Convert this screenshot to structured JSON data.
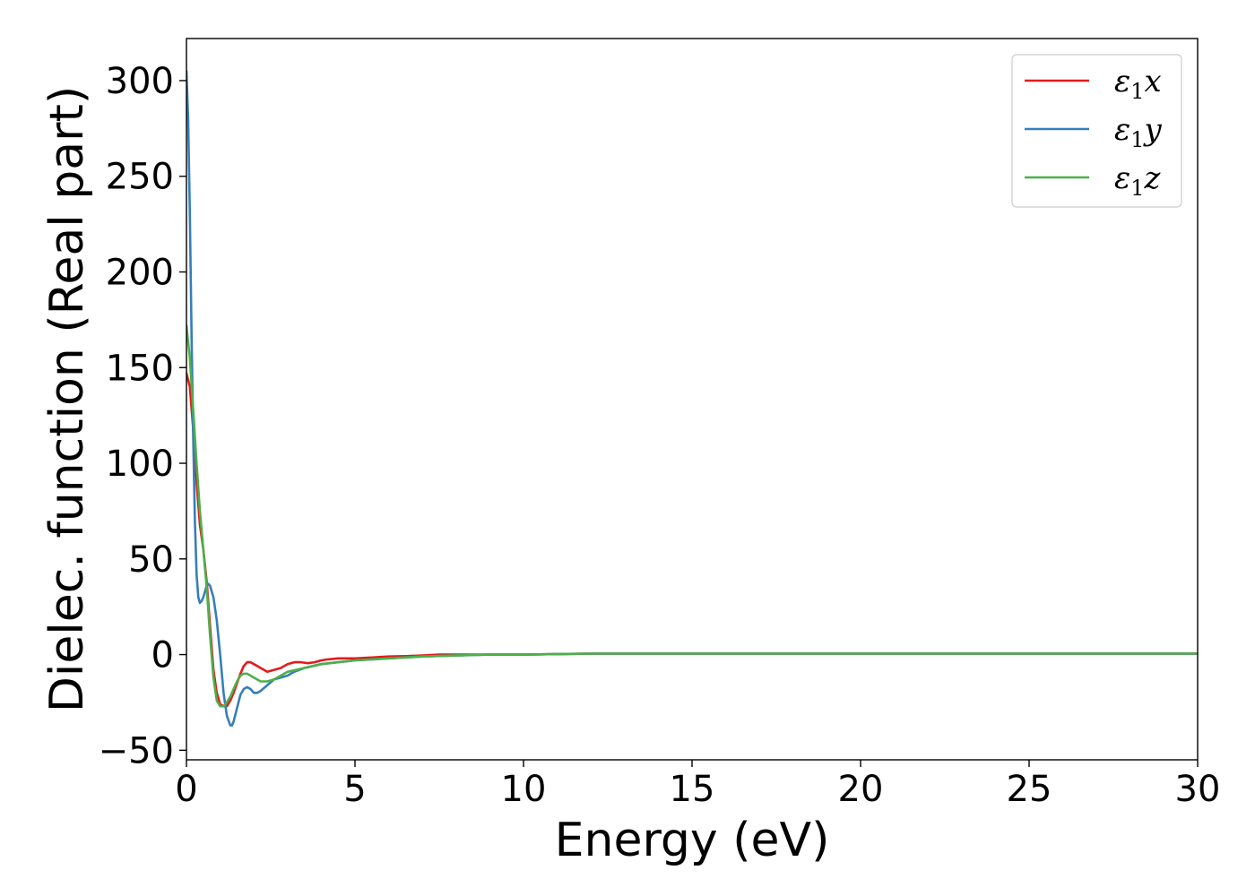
{
  "chart_data": {
    "type": "line",
    "title": "",
    "xlabel": "Energy (eV)",
    "ylabel": "Dielec. function (Real part)",
    "xlim": [
      0,
      30
    ],
    "ylim": [
      -55,
      322
    ],
    "xticks": [
      0,
      5,
      10,
      15,
      20,
      25,
      30
    ],
    "xtick_labels": [
      "0",
      "5",
      "10",
      "15",
      "20",
      "25",
      "30"
    ],
    "yticks": [
      -50,
      0,
      50,
      100,
      150,
      200,
      250,
      300
    ],
    "ytick_labels": [
      "−50",
      "0",
      "50",
      "100",
      "150",
      "200",
      "250",
      "300"
    ],
    "grid": false,
    "legend_position": "top-right",
    "series": [
      {
        "name": "ε1x",
        "legend": {
          "base": "ε",
          "sub": "1",
          "suffix": "x"
        },
        "color": "#e41a1c",
        "x": [
          0,
          0.1,
          0.2,
          0.3,
          0.4,
          0.5,
          0.6,
          0.7,
          0.8,
          0.9,
          1.0,
          1.1,
          1.2,
          1.3,
          1.4,
          1.5,
          1.6,
          1.7,
          1.8,
          1.9,
          2.0,
          2.1,
          2.2,
          2.4,
          2.6,
          2.8,
          3.0,
          3.2,
          3.4,
          3.6,
          3.8,
          4.0,
          4.2,
          4.5,
          5.0,
          5.5,
          6.0,
          6.5,
          7.0,
          7.5,
          8,
          9,
          10,
          12,
          15,
          20,
          25,
          30
        ],
        "y": [
          147,
          140,
          118,
          90,
          68,
          55,
          38,
          15,
          -8,
          -20,
          -26,
          -27,
          -27,
          -24,
          -20,
          -15,
          -10,
          -6,
          -4,
          -4,
          -5,
          -6,
          -7,
          -9,
          -8,
          -7,
          -5,
          -4,
          -4,
          -4.5,
          -4,
          -3,
          -2.5,
          -2,
          -2,
          -1.5,
          -1,
          -0.8,
          -0.5,
          0,
          0,
          0,
          0,
          0.5,
          0.5,
          0.5,
          0.5,
          0.5
        ]
      },
      {
        "name": "ε1y",
        "legend": {
          "base": "ε",
          "sub": "1",
          "suffix": "y"
        },
        "color": "#377eb8",
        "x": [
          0,
          0.05,
          0.1,
          0.15,
          0.2,
          0.25,
          0.3,
          0.35,
          0.4,
          0.45,
          0.5,
          0.55,
          0.6,
          0.65,
          0.7,
          0.8,
          0.9,
          1.0,
          1.1,
          1.2,
          1.3,
          1.35,
          1.4,
          1.5,
          1.6,
          1.7,
          1.8,
          1.9,
          2.0,
          2.1,
          2.2,
          2.4,
          2.6,
          2.8,
          3.0,
          3.2,
          3.5,
          4.0,
          4.5,
          5.0,
          5.5,
          6.0,
          7.0,
          8,
          9,
          10,
          12,
          15,
          20,
          25,
          30
        ],
        "y": [
          305,
          280,
          230,
          170,
          115,
          70,
          42,
          30,
          27,
          28,
          30,
          33,
          36,
          37,
          36,
          30,
          18,
          0,
          -20,
          -32,
          -37,
          -37,
          -35,
          -28,
          -21,
          -18,
          -17,
          -18,
          -20,
          -20,
          -19,
          -16,
          -13,
          -12,
          -11,
          -9,
          -7,
          -5,
          -4,
          -3,
          -2.5,
          -2,
          -1,
          -0.5,
          0,
          0,
          0.5,
          0.5,
          0.5,
          0.5,
          0.5
        ]
      },
      {
        "name": "ε1z",
        "legend": {
          "base": "ε",
          "sub": "1",
          "suffix": "z"
        },
        "color": "#4daf4a",
        "x": [
          0,
          0.1,
          0.2,
          0.3,
          0.4,
          0.5,
          0.6,
          0.7,
          0.8,
          0.9,
          1.0,
          1.1,
          1.2,
          1.3,
          1.4,
          1.5,
          1.6,
          1.7,
          1.8,
          1.9,
          2.0,
          2.2,
          2.4,
          2.6,
          2.8,
          3.0,
          3.5,
          4.0,
          4.5,
          5.0,
          5.5,
          6.0,
          7.0,
          8,
          9,
          10,
          12,
          15,
          20,
          25,
          30
        ],
        "y": [
          172,
          155,
          128,
          100,
          75,
          55,
          35,
          10,
          -12,
          -24,
          -27,
          -27,
          -25,
          -22,
          -18,
          -14,
          -11,
          -10,
          -10,
          -11,
          -12,
          -14,
          -14,
          -13,
          -11,
          -9,
          -7,
          -5,
          -4,
          -3,
          -2.5,
          -2,
          -1,
          -0.5,
          0,
          0,
          0.5,
          0.5,
          0.5,
          0.5,
          0.5
        ]
      }
    ]
  }
}
